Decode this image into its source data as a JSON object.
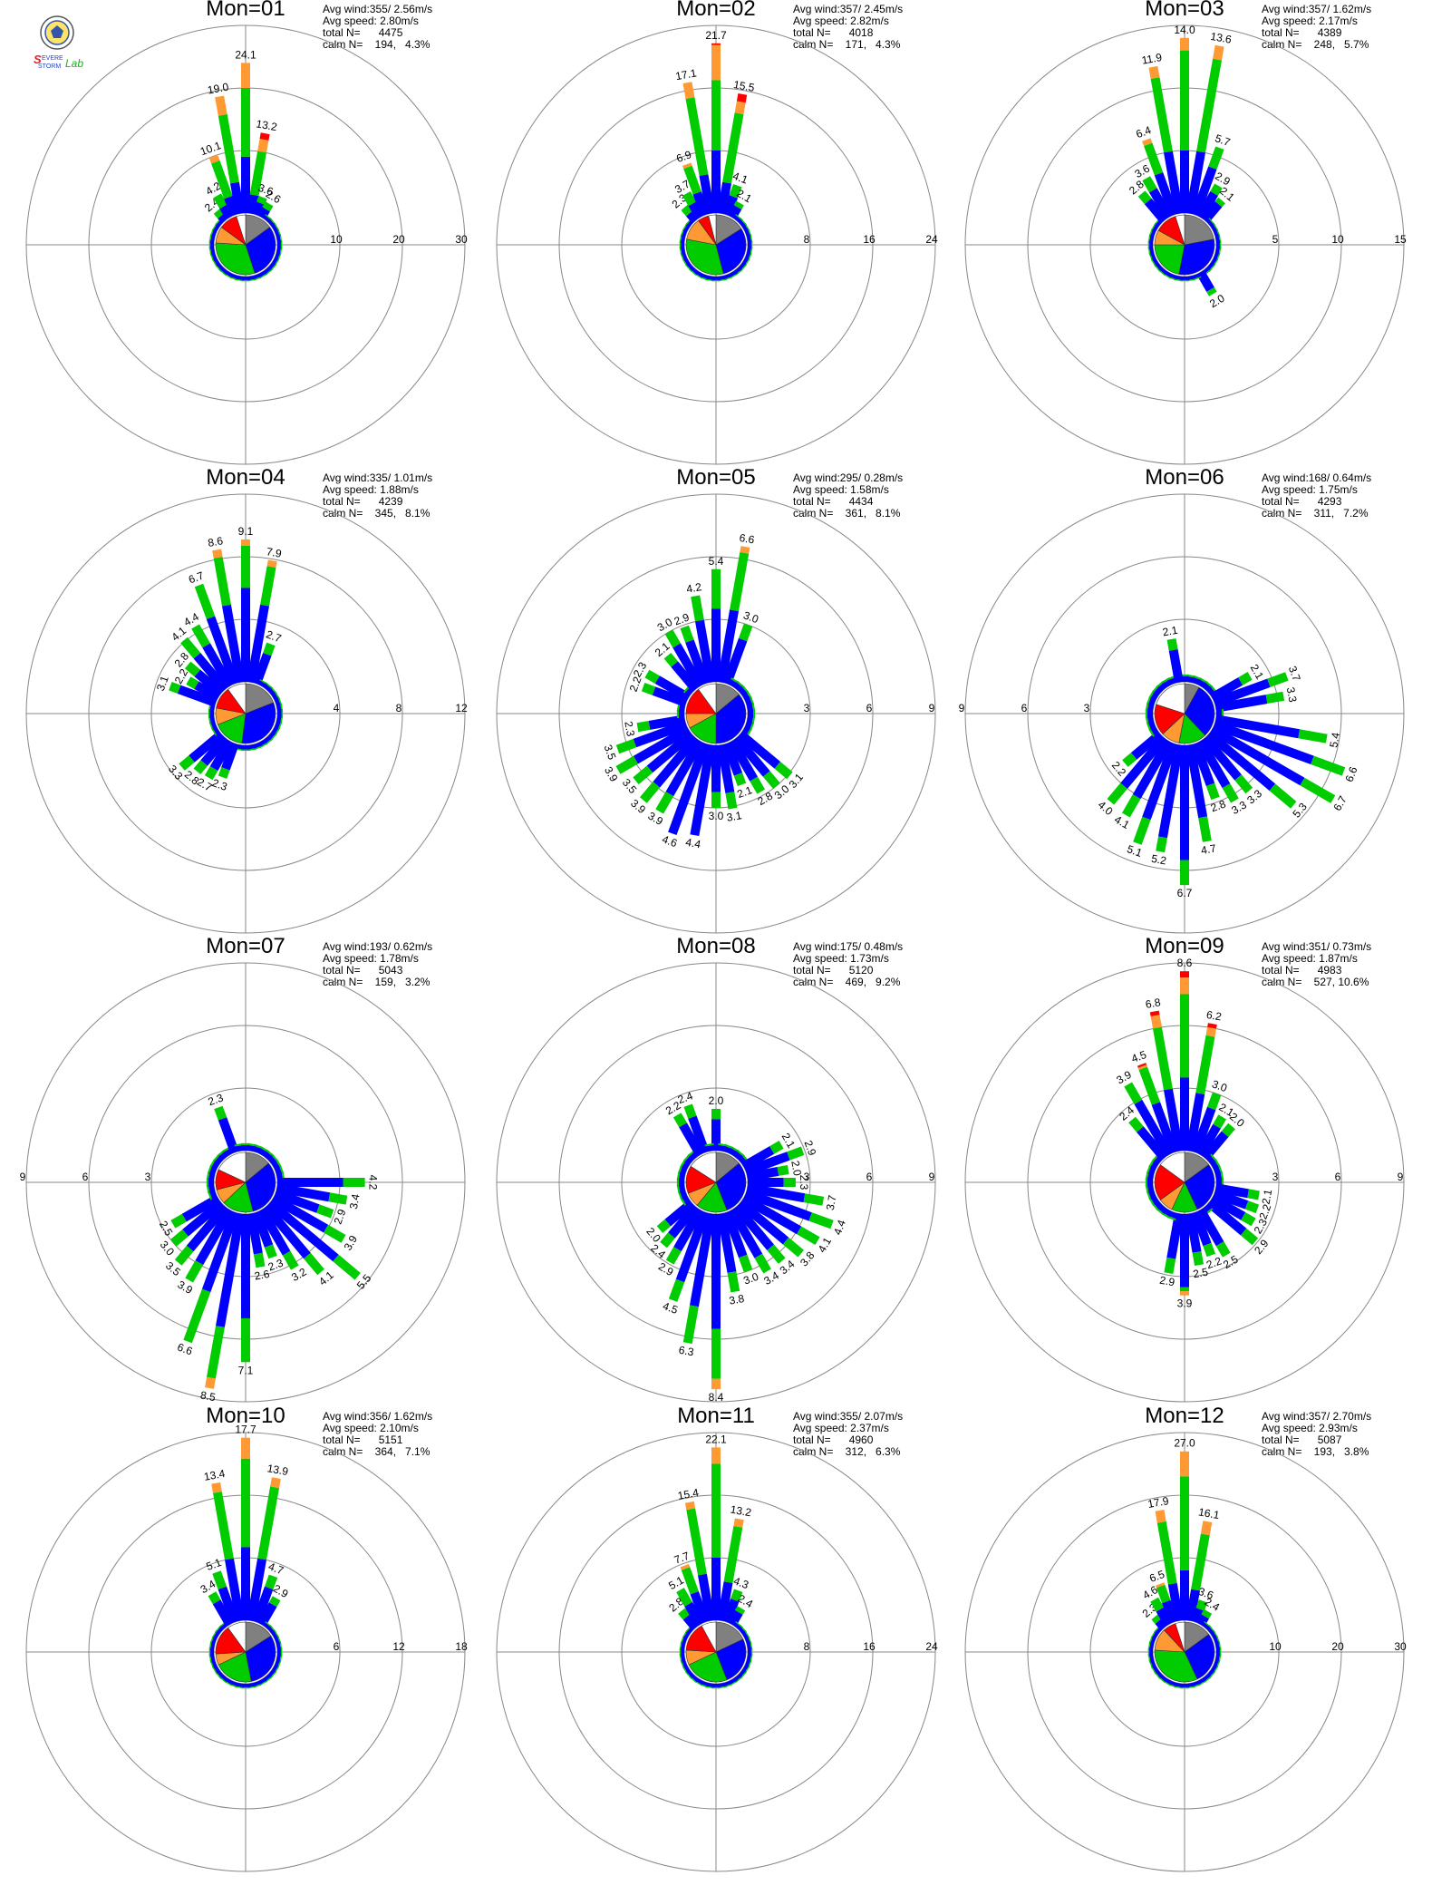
{
  "logo": {
    "line1": "Severe",
    "line2": "Storm",
    "line3": "Lab."
  },
  "colors": {
    "c0": "#808080",
    "c1": "#0000ff",
    "c2": "#00cc00",
    "c3": "#ff9933",
    "c4": "#ff0000",
    "c5": "#cc00cc",
    "grid": "#888888"
  },
  "chart_data": [
    {
      "type": "polar-bar",
      "title": "Mon=01",
      "avg_wind": "Avg wind:355/ 2.56m/s",
      "avg_speed": "Avg speed: 2.80m/s",
      "total_n": "total N=      4475",
      "calm_n": "calm N=    194,   4.3%",
      "rmax": 30,
      "ring_labels": [
        "10",
        "20",
        "30"
      ],
      "labels": {
        "0": "24.1",
        "350": "19.0",
        "340": "10.1",
        "330": "4.2",
        "320": "2.4",
        "10": "13.2",
        "20": "3.6",
        "30": "2.6"
      },
      "fills": {
        "0": [
          0,
          9,
          11,
          4,
          0,
          0
        ],
        "350": [
          0,
          5,
          11,
          3,
          0,
          0
        ],
        "10": [
          0,
          3,
          7,
          2,
          1,
          0
        ],
        "340": [
          0,
          3,
          6,
          1,
          0,
          0
        ],
        "330": [
          0,
          2,
          2,
          0,
          0,
          0
        ],
        "320": [
          0,
          1,
          1,
          0,
          0,
          0
        ],
        "20": [
          0,
          2,
          1,
          0,
          0,
          0
        ],
        "30": [
          0,
          1.5,
          1,
          0,
          0,
          0
        ]
      },
      "pie": [
        15,
        30,
        31,
        9,
        10,
        5
      ]
    },
    {
      "type": "polar-bar",
      "title": "Mon=02",
      "avg_wind": "Avg wind:357/ 2.45m/s",
      "avg_speed": "Avg speed: 2.82m/s",
      "total_n": "total N=      4018",
      "calm_n": "calm N=    171,   4.3%",
      "rmax": 24,
      "ring_labels": [
        "8",
        "16",
        "24"
      ],
      "labels": {
        "0": "21.7",
        "350": "17.1",
        "10": "15.5",
        "340": "6.9",
        "330": "3.7",
        "320": "2.3",
        "20": "4.1",
        "30": "2.1"
      },
      "fills": {
        "0": [
          0,
          8,
          9,
          4.5,
          0.2,
          0
        ],
        "350": [
          0,
          5,
          10,
          2,
          0,
          0
        ],
        "10": [
          0,
          4,
          9,
          1.5,
          1,
          0
        ],
        "340": [
          0,
          3,
          3.5,
          0.4,
          0,
          0
        ],
        "330": [
          0,
          2,
          1.5,
          0,
          0,
          0
        ],
        "320": [
          0,
          1.2,
          1,
          0,
          0,
          0
        ],
        "20": [
          0,
          2.5,
          1.5,
          0,
          0,
          0
        ],
        "30": [
          0,
          1.5,
          0.6,
          0,
          0,
          0
        ]
      },
      "pie": [
        16,
        30,
        32,
        12,
        6,
        4
      ]
    },
    {
      "type": "polar-bar",
      "title": "Mon=03",
      "avg_wind": "Avg wind:357/ 1.62m/s",
      "avg_speed": "Avg speed: 2.17m/s",
      "total_n": "total N=      4389",
      "calm_n": "calm N=    248,   5.7%",
      "rmax": 15,
      "ring_labels": [
        "5",
        "10",
        "15"
      ],
      "labels": {
        "0": "14.0",
        "350": "11.9",
        "10": "13.6",
        "340": "6.4",
        "330": "3.6",
        "320": "2.8",
        "20": "5.7",
        "30": "2.9",
        "40": "2.1",
        "150": "2.0"
      },
      "fills": {
        "0": [
          0,
          5,
          8,
          1,
          0,
          0
        ],
        "350": [
          0,
          5,
          6,
          0.9,
          0,
          0
        ],
        "10": [
          0,
          5,
          7.5,
          1.1,
          0,
          0
        ],
        "340": [
          0,
          3.5,
          2.5,
          0.4,
          0,
          0
        ],
        "330": [
          0,
          2.5,
          1.1,
          0,
          0,
          0
        ],
        "320": [
          0,
          2,
          0.8,
          0,
          0,
          0
        ],
        "20": [
          0,
          4,
          1.7,
          0,
          0,
          0
        ],
        "30": [
          0,
          2.2,
          0.7,
          0,
          0,
          0
        ],
        "40": [
          0,
          1.7,
          0.4,
          0,
          0,
          0
        ],
        "150": [
          0,
          1.6,
          0.4,
          0,
          0,
          0
        ]
      },
      "pie": [
        22,
        31,
        22,
        8,
        12,
        5
      ]
    },
    {
      "type": "polar-bar",
      "title": "Mon=04",
      "avg_wind": "Avg wind:335/ 1.01m/s",
      "avg_speed": "Avg speed: 1.88m/s",
      "total_n": "total N=      4239",
      "calm_n": "calm N=    345,   8.1%",
      "rmax": 12,
      "ring_labels": [
        "4",
        "8",
        "12"
      ],
      "labels": {
        "0": "9.1",
        "350": "8.6",
        "10": "7.9",
        "340": "6.7",
        "330": "4.4",
        "320": "4.1",
        "310": "2.8",
        "300": "2.2",
        "290": "3.1",
        "20": "2.7",
        "200": "2.3",
        "210": "2.7",
        "220": "2.8",
        "230": "3.3"
      },
      "fills": {
        "0": [
          0,
          6,
          2.7,
          0.4,
          0,
          0
        ],
        "350": [
          0,
          5,
          3.1,
          0.5,
          0,
          0
        ],
        "10": [
          0,
          5,
          2.5,
          0.4,
          0,
          0
        ],
        "340": [
          0,
          4.5,
          2.2,
          0,
          0,
          0
        ],
        "330": [
          0,
          3,
          1.4,
          0,
          0,
          0
        ],
        "320": [
          0,
          2.8,
          1.3,
          0,
          0,
          0
        ],
        "20": [
          0,
          2,
          0.7,
          0,
          0,
          0
        ],
        "310": [
          0,
          2,
          0.8,
          0,
          0,
          0
        ],
        "300": [
          0,
          1.6,
          0.6,
          0,
          0,
          0
        ],
        "290": [
          0,
          2.5,
          0.6,
          0,
          0,
          0
        ]
      },
      "pie": [
        19,
        33,
        17,
        9,
        12,
        10
      ]
    },
    {
      "type": "polar-bar",
      "title": "Mon=05",
      "avg_wind": "Avg wind:295/ 0.28m/s",
      "avg_speed": "Avg speed: 1.58m/s",
      "total_n": "total N=      4434",
      "calm_n": "calm N=    361,   8.1%",
      "rmax": 9,
      "ring_labels": [
        "3",
        "6",
        "9"
      ],
      "labels": {
        "10": "6.6",
        "0": "5.4",
        "350": "4.2",
        "340": "2.9",
        "330": "3.0",
        "320": "2.1",
        "290": "2.2",
        "300": "2.3",
        "20": "3.0",
        "130": "3.1",
        "140": "3.0",
        "150": "2.8",
        "160": "2.1",
        "170": "3.1",
        "180": "3.0",
        "190": "4.4",
        "200": "4.6",
        "210": "3.9",
        "220": "3.9",
        "230": "3.5",
        "240": "3.9",
        "250": "3.5",
        "260": "2.3"
      },
      "fills": {
        "10": [
          0,
          3.5,
          2.8,
          0.3,
          0,
          0
        ],
        "0": [
          0,
          3.5,
          1.9,
          0,
          0,
          0
        ],
        "350": [
          0,
          3,
          1.2,
          0,
          0,
          0
        ],
        "200": [
          0,
          4.6,
          0,
          0,
          0,
          0
        ],
        "190": [
          0,
          4.4,
          0,
          0,
          0,
          0
        ]
      },
      "pie": [
        14,
        36,
        17,
        8,
        15,
        10
      ]
    },
    {
      "type": "polar-bar",
      "title": "Mon=06",
      "avg_wind": "Avg wind:168/ 0.64m/s",
      "avg_speed": "Avg speed: 1.75m/s",
      "total_n": "total N=      4293",
      "calm_n": "calm N=    311,   7.2%",
      "rmax": 9,
      "ring_labels": [
        "3",
        "6",
        "9"
      ],
      "labels": {
        "350": "2.1",
        "60": "2.1",
        "70": "3.7",
        "80": "3.3",
        "100": "5.4",
        "110": "6.6",
        "120": "6.7",
        "130": "5.3",
        "140": "3.3",
        "150": "3.3",
        "160": "2.8",
        "170": "4.7",
        "180": "6.7",
        "190": "5.2",
        "200": "5.1",
        "210": "4.1",
        "220": "4.0",
        "230": "2.2"
      },
      "fills": {
        "180": [
          0,
          5.5,
          1.2,
          0,
          0,
          0
        ],
        "120": [
          0,
          5,
          1.7,
          0,
          0,
          0
        ],
        "110": [
          0,
          5,
          1.6,
          0,
          0,
          0
        ],
        "190": [
          0,
          4.5,
          0.7,
          0,
          0,
          0
        ]
      },
      "pie": [
        8,
        30,
        15,
        10,
        17,
        20
      ]
    },
    {
      "type": "polar-bar",
      "title": "Mon=07",
      "avg_wind": "Avg wind:193/ 0.62m/s",
      "avg_speed": "Avg speed: 1.78m/s",
      "total_n": "total N=      5043",
      "calm_n": "calm N=    159,   3.2%",
      "rmax": 9,
      "ring_labels": [
        "3",
        "6",
        "9"
      ],
      "labels": {
        "340": "2.3",
        "90": "4.2",
        "100": "3.4",
        "110": "2.9",
        "120": "3.9",
        "130": "5.5",
        "140": "4.1",
        "150": "3.2",
        "160": "2.3",
        "170": "2.6",
        "180": "7.1",
        "190": "8.5",
        "200": "6.6",
        "210": "3.9",
        "220": "3.5",
        "230": "3.0",
        "240": "2.5"
      },
      "fills": {
        "190": [
          0,
          5.5,
          2.5,
          0.5,
          0,
          0
        ],
        "180": [
          0,
          5,
          2.1,
          0,
          0,
          0
        ],
        "200": [
          0,
          4,
          2.6,
          0,
          0,
          0
        ]
      },
      "pie": [
        14,
        32,
        17,
        8,
        11,
        18
      ]
    },
    {
      "type": "polar-bar",
      "title": "Mon=08",
      "avg_wind": "Avg wind:175/ 0.48m/s",
      "avg_speed": "Avg speed: 1.73m/s",
      "total_n": "total N=      5120",
      "calm_n": "calm N=    469,   9.2%",
      "rmax": 9,
      "ring_labels": [
        "3",
        "6",
        "9"
      ],
      "labels": {
        "0": "2.0",
        "340": "2.4",
        "330": "2.2",
        "60": "2.1",
        "70": "2.9",
        "80": "2.0",
        "90": "2.3",
        "100": "3.7",
        "110": "4.4",
        "120": "4.1",
        "130": "3.8",
        "140": "3.4",
        "150": "3.4",
        "160": "3.0",
        "170": "3.8",
        "180": "8.4",
        "190": "6.3",
        "200": "4.5",
        "210": "2.9",
        "220": "2.4",
        "230": "2.0"
      },
      "fills": {
        "180": [
          0,
          5.5,
          2.4,
          0.5,
          0,
          0
        ],
        "190": [
          0,
          4.5,
          1.8,
          0,
          0,
          0
        ],
        "200": [
          0,
          3.5,
          1,
          0,
          0,
          0
        ]
      },
      "pie": [
        14,
        30,
        17,
        8,
        15,
        16
      ]
    },
    {
      "type": "polar-bar",
      "title": "Mon=09",
      "avg_wind": "Avg wind:351/ 0.73m/s",
      "avg_speed": "Avg speed: 1.87m/s",
      "total_n": "total N=      4983",
      "calm_n": "calm N=    527, 10.6%",
      "rmax": 9,
      "ring_labels": [
        "3",
        "6",
        "9"
      ],
      "labels": {
        "0": "8.6",
        "350": "6.8",
        "10": "6.2",
        "340": "4.5",
        "330": "3.9",
        "320": "2.4",
        "20": "3.0",
        "30": "2.1",
        "40": "2.0",
        "100": "2.1",
        "110": "2.2",
        "120": "2.3",
        "130": "2.9",
        "150": "2.5",
        "160": "2.2",
        "170": "2.5",
        "180": "3.9",
        "190": "2.9"
      },
      "fills": {
        "0": [
          0,
          3.5,
          4,
          0.8,
          0.3,
          0
        ],
        "350": [
          0,
          3,
          3,
          0.6,
          0.2,
          0
        ],
        "10": [
          0,
          2.8,
          2.8,
          0.4,
          0.2,
          0
        ],
        "340": [
          0,
          2.5,
          1.8,
          0.1,
          0.1,
          0
        ],
        "180": [
          0,
          3.5,
          0.2,
          0.2,
          0,
          0
        ]
      },
      "pie": [
        15,
        28,
        14,
        8,
        20,
        15
      ]
    },
    {
      "type": "polar-bar",
      "title": "Mon=10",
      "avg_wind": "Avg wind:356/ 1.62m/s",
      "avg_speed": "Avg speed: 2.10m/s",
      "total_n": "total N=      5151",
      "calm_n": "calm N=    364,   7.1%",
      "rmax": 18,
      "ring_labels": [
        "6",
        "12",
        "18"
      ],
      "labels": {
        "0": "17.7",
        "350": "13.4",
        "10": "13.9",
        "340": "5.1",
        "330": "3.4",
        "20": "4.7",
        "30": "2.9"
      },
      "fills": {
        "0": [
          0,
          7,
          8.5,
          2,
          0,
          0
        ],
        "350": [
          0,
          6,
          6.5,
          0.9,
          0,
          0
        ],
        "10": [
          0,
          6,
          7,
          0.9,
          0,
          0
        ],
        "340": [
          0,
          3.5,
          1.6,
          0,
          0,
          0
        ],
        "330": [
          0,
          2.5,
          0.9,
          0,
          0,
          0
        ],
        "20": [
          0,
          3.5,
          1.2,
          0,
          0,
          0
        ],
        "30": [
          0,
          2.2,
          0.7,
          0,
          0,
          0
        ]
      },
      "pie": [
        16,
        31,
        21,
        6,
        16,
        10
      ]
    },
    {
      "type": "polar-bar",
      "title": "Mon=11",
      "avg_wind": "Avg wind:355/ 2.07m/s",
      "avg_speed": "Avg speed: 2.37m/s",
      "total_n": "total N=      4960",
      "calm_n": "calm N=    312,   6.3%",
      "rmax": 24,
      "ring_labels": [
        "8",
        "16",
        "24"
      ],
      "labels": {
        "0": "22.1",
        "350": "15.4",
        "10": "13.2",
        "340": "7.7",
        "330": "5.1",
        "320": "2.8",
        "20": "4.3",
        "30": "2.4"
      },
      "fills": {
        "0": [
          0,
          8,
          12,
          2.1,
          0,
          0
        ],
        "350": [
          0,
          6,
          8.5,
          0.9,
          0,
          0
        ],
        "10": [
          0,
          5,
          7.2,
          1,
          0,
          0
        ],
        "340": [
          0,
          4,
          3.3,
          0.4,
          0,
          0
        ],
        "330": [
          0,
          3,
          2.1,
          0,
          0,
          0
        ],
        "320": [
          0,
          1.8,
          1,
          0,
          0,
          0
        ],
        "20": [
          0,
          3,
          1.3,
          0,
          0,
          0
        ],
        "30": [
          0,
          1.8,
          0.6,
          0,
          0,
          0
        ]
      },
      "pie": [
        18,
        26,
        24,
        8,
        16,
        8
      ]
    },
    {
      "type": "polar-bar",
      "title": "Mon=12",
      "avg_wind": "Avg wind:357/ 2.70m/s",
      "avg_speed": "Avg speed: 2.93m/s",
      "total_n": "total N=      5087",
      "calm_n": "calm N=    193,   3.8%",
      "rmax": 30,
      "ring_labels": [
        "10",
        "20",
        "30"
      ],
      "labels": {
        "0": "27.0",
        "350": "17.9",
        "10": "16.1",
        "340": "6.5",
        "330": "4.6",
        "320": "2.3",
        "20": "3.6",
        "30": "2.4"
      },
      "fills": {
        "0": [
          0,
          8,
          15,
          4,
          0,
          0
        ],
        "350": [
          0,
          6,
          10,
          1.9,
          0,
          0
        ],
        "10": [
          0,
          5,
          9,
          2.1,
          0,
          0
        ],
        "340": [
          0,
          3.5,
          2.6,
          0.4,
          0,
          0
        ],
        "330": [
          0,
          2.8,
          1.8,
          0,
          0,
          0
        ],
        "320": [
          0,
          1.4,
          0.9,
          0,
          0,
          0
        ],
        "20": [
          0,
          2.2,
          1.4,
          0,
          0,
          0
        ],
        "30": [
          0,
          1.5,
          0.9,
          0,
          0,
          0
        ]
      },
      "pie": [
        15,
        28,
        33,
        12,
        7,
        5
      ]
    }
  ]
}
